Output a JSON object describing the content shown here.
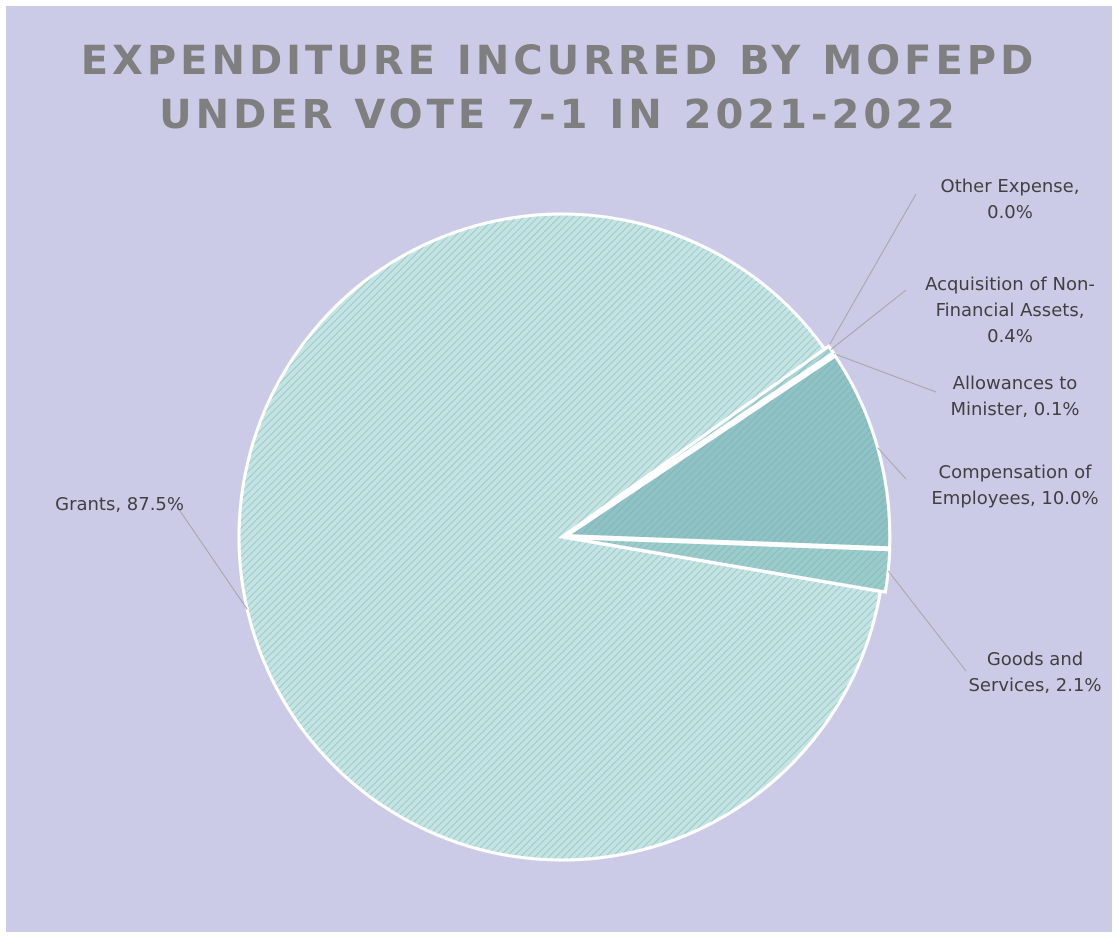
{
  "chart_data": {
    "type": "pie",
    "title": "EXPENDITURE INCURRED BY MOFEPD UNDER VOTE 7-1 IN 2021-2022",
    "values": [
      0.0,
      0.4,
      0.1,
      10.0,
      2.1,
      87.5
    ],
    "value_labels": [
      "Other Expense, 0.0%",
      "Acquisition of Non-Financial Assets, 0.4%",
      "Allowances to Minister, 0.1%",
      "Compensation of Employees, 10.0%",
      "Goods and Services, 2.1%",
      "Grants, 87.5%"
    ],
    "colors": [
      "#a9d3d4",
      "#a9d3d4",
      "#a9d3d4",
      "#8fc2c4",
      "#9ccbcc",
      "#c4e3e3"
    ]
  }
}
